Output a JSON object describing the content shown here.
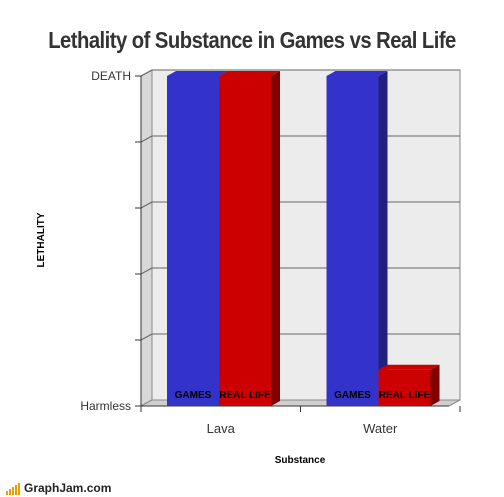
{
  "chart_data": {
    "type": "bar",
    "title": "Lethality of Substance in Games vs Real Life",
    "xlabel": "Substance",
    "ylabel": "LETHALITY",
    "y_tick_labels": [
      "Harmless",
      "",
      "",
      "",
      "",
      "DEATH"
    ],
    "ylim": [
      0,
      5
    ],
    "categories": [
      "Lava",
      "Water"
    ],
    "series": [
      {
        "name": "GAMES",
        "color": "#3333cc",
        "values": [
          5,
          5
        ],
        "bar_labels": [
          "GAMES",
          "GAMES"
        ]
      },
      {
        "name": "REAL LIFE",
        "color": "#cc0000",
        "values": [
          5,
          0.55
        ],
        "bar_labels": [
          "REAL LIFE",
          "REAL LIFE"
        ]
      }
    ],
    "grid": true,
    "style": "3d"
  },
  "footer": {
    "brand": "GraphJam.com",
    "brand_color": "#e8a000"
  }
}
